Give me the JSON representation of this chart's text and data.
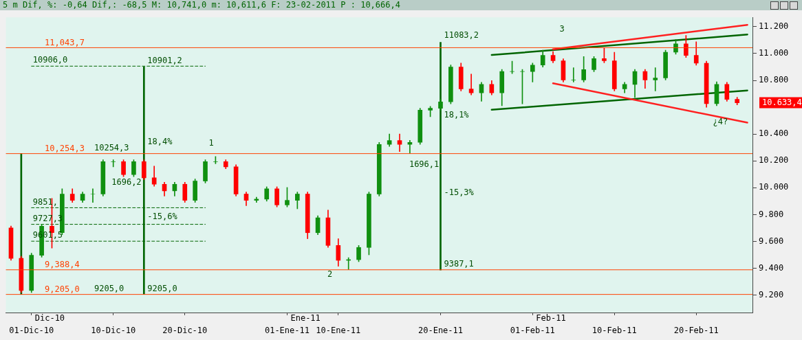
{
  "chart_data": {
    "type": "candlestick",
    "title": "5 m Dif, %: -0,64 Dif,: -68,5 M: 10,741,0 m: 10,611,6 F: 23-02-2011 P : 10,666,4",
    "categories": [
      null,
      null,
      "01-Dic-10",
      null,
      null,
      null,
      null,
      null,
      null,
      null,
      "10-Dic-10",
      null,
      null,
      null,
      null,
      null,
      null,
      "20-Dic-10",
      null,
      null,
      null,
      null,
      null,
      null,
      null,
      null,
      null,
      "01-Ene-11",
      null,
      null,
      null,
      null,
      "10-Ene-11",
      null,
      null,
      null,
      null,
      null,
      null,
      null,
      null,
      null,
      "20-Ene-11",
      null,
      null,
      null,
      null,
      null,
      null,
      null,
      null,
      "01-Feb-11",
      null,
      null,
      null,
      null,
      null,
      null,
      null,
      "10-Feb-11",
      null,
      null,
      null,
      null,
      null,
      null,
      null,
      "20-Feb-11",
      null,
      null,
      null,
      null,
      null
    ],
    "ohlc": [
      [
        9700,
        9715,
        9459,
        9474
      ],
      [
        9474,
        9489,
        9219,
        9234
      ],
      [
        9234,
        9512,
        9219,
        9497
      ],
      [
        9497,
        9728,
        9482,
        9713
      ],
      [
        9713,
        9921,
        9550,
        9665
      ],
      [
        9665,
        9992,
        9650,
        9953
      ],
      [
        9953,
        9992,
        9891,
        9906
      ],
      [
        9906,
        9968,
        9891,
        9953
      ],
      [
        9953,
        9992,
        9891,
        9953
      ],
      [
        9953,
        10209,
        9938,
        10194
      ],
      [
        10194,
        10209,
        10155,
        10194
      ],
      [
        10194,
        10209,
        10083,
        10098
      ],
      [
        10098,
        10209,
        10083,
        10194
      ],
      [
        10194,
        10209,
        10059,
        10074
      ],
      [
        10074,
        10161,
        10011,
        10026
      ],
      [
        10026,
        10041,
        9938,
        9977
      ],
      [
        9977,
        10041,
        9938,
        10026
      ],
      [
        10026,
        10041,
        9891,
        9906
      ],
      [
        9906,
        10065,
        9891,
        10050
      ],
      [
        10050,
        10209,
        10035,
        10194
      ],
      [
        10194,
        10233,
        10179,
        10194
      ],
      [
        10194,
        10209,
        10141,
        10156
      ],
      [
        10156,
        10171,
        9938,
        9953
      ],
      [
        9953,
        9968,
        9867,
        9906
      ],
      [
        9906,
        9930,
        9891,
        9915
      ],
      [
        9915,
        10007,
        9900,
        9992
      ],
      [
        9992,
        10007,
        9857,
        9872
      ],
      [
        9872,
        10002,
        9857,
        9906
      ],
      [
        9906,
        9968,
        9843,
        9953
      ],
      [
        9953,
        9968,
        9620,
        9665
      ],
      [
        9665,
        9791,
        9650,
        9776
      ],
      [
        9776,
        9834,
        9555,
        9570
      ],
      [
        9570,
        9620,
        9415,
        9459
      ],
      [
        9459,
        9479,
        9390,
        9464
      ],
      [
        9464,
        9570,
        9449,
        9555
      ],
      [
        9555,
        9968,
        9500,
        9953
      ],
      [
        9953,
        10338,
        9938,
        10323
      ],
      [
        10323,
        10401,
        10308,
        10352
      ],
      [
        10352,
        10401,
        10270,
        10323
      ],
      [
        10323,
        10353,
        10255,
        10338
      ],
      [
        10338,
        10593,
        10323,
        10578
      ],
      [
        10578,
        10607,
        10529,
        10592
      ],
      [
        10592,
        10660,
        10577,
        10640
      ],
      [
        10640,
        10915,
        10625,
        10900
      ],
      [
        10900,
        10929,
        10721,
        10736
      ],
      [
        10736,
        10847,
        10692,
        10707
      ],
      [
        10707,
        10785,
        10644,
        10770
      ],
      [
        10770,
        10799,
        10692,
        10707
      ],
      [
        10707,
        10881,
        10611,
        10866
      ],
      [
        10866,
        10943,
        10851,
        10866
      ],
      [
        10866,
        10881,
        10625,
        10866
      ],
      [
        10866,
        10929,
        10788,
        10914
      ],
      [
        10914,
        11025,
        10899,
        10986
      ],
      [
        10986,
        11015,
        10931,
        10946
      ],
      [
        10946,
        10961,
        10788,
        10803
      ],
      [
        10803,
        10895,
        10788,
        10803
      ],
      [
        10803,
        10977,
        10788,
        10880
      ],
      [
        10880,
        10977,
        10865,
        10962
      ],
      [
        10962,
        11039,
        10931,
        10946
      ],
      [
        10946,
        11010,
        10721,
        10736
      ],
      [
        10736,
        10785,
        10707,
        10770
      ],
      [
        10770,
        10881,
        10673,
        10866
      ],
      [
        10866,
        10881,
        10740,
        10803
      ],
      [
        10803,
        10895,
        10721,
        10818
      ],
      [
        10818,
        11025,
        10803,
        11010
      ],
      [
        11010,
        11106,
        10995,
        11072
      ],
      [
        11072,
        11135,
        10971,
        10986
      ],
      [
        10986,
        11087,
        10913,
        10928
      ],
      [
        10928,
        10943,
        10600,
        10626
      ],
      [
        10626,
        10790,
        10611,
        10770
      ],
      [
        10770,
        10785,
        10644,
        10659
      ],
      [
        10659,
        10674,
        10618,
        10633.4
      ],
      null
    ],
    "series": [
      {
        "type": "line",
        "color": "#ff2020",
        "values": [
          null,
          null,
          null,
          null,
          null,
          null,
          null,
          null,
          null,
          null,
          null,
          null,
          null,
          null,
          null,
          null,
          null,
          null,
          null,
          null,
          null,
          null,
          null,
          null,
          null,
          null,
          null,
          null,
          null,
          null,
          null,
          null,
          null,
          null,
          null,
          null,
          null,
          null,
          null,
          null,
          null,
          null,
          null,
          null,
          null,
          null,
          null,
          null,
          null,
          null,
          null,
          null,
          null,
          11032,
          null,
          null,
          null,
          null,
          null,
          null,
          null,
          null,
          null,
          null,
          null,
          null,
          null,
          null,
          null,
          null,
          null,
          null,
          11214
        ]
      },
      {
        "type": "line",
        "color": "#ff2020",
        "values": [
          null,
          null,
          null,
          null,
          null,
          null,
          null,
          null,
          null,
          null,
          null,
          null,
          null,
          null,
          null,
          null,
          null,
          null,
          null,
          null,
          null,
          null,
          null,
          null,
          null,
          null,
          null,
          null,
          null,
          null,
          null,
          null,
          null,
          null,
          null,
          null,
          null,
          null,
          null,
          null,
          null,
          null,
          null,
          null,
          null,
          null,
          null,
          null,
          null,
          null,
          null,
          null,
          null,
          10778,
          null,
          null,
          null,
          null,
          null,
          null,
          null,
          null,
          null,
          null,
          null,
          null,
          null,
          null,
          null,
          null,
          null,
          null,
          10485
        ]
      },
      {
        "type": "line",
        "color": "#006400",
        "values": [
          null,
          null,
          null,
          null,
          null,
          null,
          null,
          null,
          null,
          null,
          null,
          null,
          null,
          null,
          null,
          null,
          null,
          null,
          null,
          null,
          null,
          null,
          null,
          null,
          null,
          null,
          null,
          null,
          null,
          null,
          null,
          null,
          null,
          null,
          null,
          null,
          null,
          null,
          null,
          null,
          null,
          null,
          null,
          null,
          null,
          null,
          null,
          10989,
          null,
          null,
          null,
          null,
          null,
          null,
          null,
          null,
          null,
          null,
          null,
          null,
          null,
          null,
          null,
          null,
          null,
          null,
          null,
          null,
          null,
          null,
          null,
          null,
          11142
        ]
      },
      {
        "type": "line",
        "color": "#006400",
        "values": [
          null,
          null,
          null,
          null,
          null,
          null,
          null,
          null,
          null,
          null,
          null,
          null,
          null,
          null,
          null,
          null,
          null,
          null,
          null,
          null,
          null,
          null,
          null,
          null,
          null,
          null,
          null,
          null,
          null,
          null,
          null,
          null,
          null,
          null,
          null,
          null,
          null,
          null,
          null,
          null,
          null,
          null,
          null,
          null,
          null,
          null,
          null,
          10581,
          null,
          null,
          null,
          null,
          null,
          null,
          null,
          null,
          null,
          null,
          null,
          null,
          null,
          null,
          null,
          null,
          null,
          null,
          null,
          null,
          null,
          null,
          null,
          null,
          10725
        ]
      },
      {
        "type": "line",
        "color": "#006400",
        "line_style": "dashed",
        "values": [
          null,
          null,
          10906,
          null,
          null,
          null,
          null,
          null,
          null,
          null,
          null,
          null,
          null,
          null,
          null,
          null,
          null,
          null,
          null,
          10906,
          null,
          null,
          null,
          null,
          null,
          null,
          null,
          null,
          null,
          null,
          null,
          null,
          null,
          null,
          null,
          null,
          null,
          null,
          null,
          null,
          null,
          null,
          null,
          null,
          null,
          null,
          null,
          null,
          null,
          null,
          null,
          null,
          null,
          null,
          null,
          null,
          null,
          null,
          null,
          null,
          null,
          null,
          null,
          null,
          null,
          null,
          null,
          null,
          null,
          null,
          null,
          null,
          null
        ]
      },
      {
        "type": "line",
        "color": "#006400",
        "line_style": "dashed",
        "values": [
          null,
          null,
          9851,
          null,
          null,
          null,
          null,
          null,
          null,
          null,
          null,
          null,
          null,
          null,
          null,
          null,
          null,
          null,
          null,
          9851,
          null,
          null,
          null,
          null,
          null,
          null,
          null,
          null,
          null,
          null,
          null,
          null,
          null,
          null,
          null,
          null,
          null,
          null,
          null,
          null,
          null,
          null,
          null,
          null,
          null,
          null,
          null,
          null,
          null,
          null,
          null,
          null,
          null,
          null,
          null,
          null,
          null,
          null,
          null,
          null,
          null,
          null,
          null,
          null,
          null,
          null,
          null,
          null,
          null,
          null,
          null,
          null,
          null
        ]
      },
      {
        "type": "line",
        "color": "#006400",
        "line_style": "dashed",
        "values": [
          null,
          null,
          9727.3,
          null,
          null,
          null,
          null,
          null,
          null,
          null,
          null,
          null,
          null,
          null,
          null,
          null,
          null,
          null,
          null,
          9727.3,
          null,
          null,
          null,
          null,
          null,
          null,
          null,
          null,
          null,
          null,
          null,
          null,
          null,
          null,
          null,
          null,
          null,
          null,
          null,
          null,
          null,
          null,
          null,
          null,
          null,
          null,
          null,
          null,
          null,
          null,
          null,
          null,
          null,
          null,
          null,
          null,
          null,
          null,
          null,
          null,
          null,
          null,
          null,
          null,
          null,
          null,
          null,
          null,
          null,
          null,
          null,
          null,
          null
        ]
      },
      {
        "type": "line",
        "color": "#006400",
        "line_style": "dashed",
        "values": [
          null,
          null,
          9601.5,
          null,
          null,
          null,
          null,
          null,
          null,
          null,
          null,
          null,
          null,
          null,
          null,
          null,
          null,
          null,
          null,
          9601.5,
          null,
          null,
          null,
          null,
          null,
          null,
          null,
          null,
          null,
          null,
          null,
          null,
          null,
          null,
          null,
          null,
          null,
          null,
          null,
          null,
          null,
          null,
          null,
          null,
          null,
          null,
          null,
          null,
          null,
          null,
          null,
          null,
          null,
          null,
          null,
          null,
          null,
          null,
          null,
          null,
          null,
          null,
          null,
          null,
          null,
          null,
          null,
          null,
          null,
          null,
          null,
          null,
          null
        ]
      },
      {
        "type": "bar",
        "color": "#006400",
        "values": [
          null,
          1049.3,
          null,
          null,
          null,
          null,
          null,
          null,
          null,
          null,
          null,
          null,
          null,
          1696.2,
          null,
          null,
          null,
          null,
          null,
          null,
          null,
          null,
          null,
          null,
          null,
          null,
          null,
          null,
          null,
          null,
          null,
          null,
          null,
          null,
          null,
          null,
          null,
          null,
          null,
          null,
          null,
          null,
          1696.1,
          null,
          null,
          null,
          null,
          null,
          null,
          null,
          null,
          null,
          null,
          null,
          null,
          null,
          null,
          null,
          null,
          null,
          null,
          null,
          null,
          null,
          null,
          null,
          null,
          null,
          null,
          null,
          null,
          null,
          null
        ],
        "base": [
          null,
          9205,
          null,
          null,
          null,
          null,
          null,
          null,
          null,
          null,
          null,
          null,
          null,
          9205,
          null,
          null,
          null,
          null,
          null,
          null,
          null,
          null,
          null,
          null,
          null,
          null,
          null,
          null,
          null,
          null,
          null,
          null,
          null,
          null,
          null,
          null,
          null,
          null,
          null,
          null,
          null,
          null,
          9387.1,
          null,
          null,
          null,
          null,
          null,
          null,
          null,
          null,
          null,
          null,
          null,
          null,
          null,
          null,
          null,
          null,
          null,
          null,
          null,
          null,
          null,
          null,
          null,
          null,
          null,
          null,
          null,
          null,
          null,
          null
        ]
      }
    ],
    "ref_lines": [
      {
        "axis": "y",
        "value": 11043.7,
        "label": "11,043,7",
        "color": "#ff4000"
      },
      {
        "axis": "y",
        "value": 10254.3,
        "label": "10,254,3",
        "color": "#ff4000"
      },
      {
        "axis": "y",
        "value": 9388.4,
        "label": "9,388,4",
        "color": "#ff4000"
      },
      {
        "axis": "y",
        "value": 9205.0,
        "label": "9,205,0",
        "color": "#ff4000"
      }
    ],
    "annotations": [
      {
        "text": "10906,0",
        "y": 10906
      },
      {
        "text": "10901,2",
        "y": 10901.2
      },
      "18,4%",
      {
        "text": "10254,3",
        "y": 10254.3
      },
      "1696,2",
      {
        "text": "9851,",
        "y": 9851
      },
      {
        "text": "9727,3",
        "y": 9727.3
      },
      "-15,6%",
      {
        "text": "9601,5",
        "y": 9601.5
      },
      {
        "text": "9205,0",
        "y": 9205
      },
      {
        "text": "9205,0",
        "y": 9205
      },
      "1",
      "2",
      "3",
      "¿4?",
      "11083,2",
      "18,1%",
      "1696,1",
      "-15,3%",
      {
        "text": "9387,1",
        "y": 9387.1
      },
      "10.633,4",
      "Dic-10",
      "Ene-11",
      "Feb-11"
    ],
    "ylim": [
      9070,
      11270
    ],
    "yticks": [
      {
        "value": 9200,
        "label": "9.200"
      },
      {
        "value": 9400,
        "label": "9.400"
      },
      {
        "value": 9600,
        "label": "9.600"
      },
      {
        "value": 9800,
        "label": "9.800"
      },
      {
        "value": 10000,
        "label": "10.000"
      },
      {
        "value": 10200,
        "label": "10.200"
      },
      {
        "value": 10400,
        "label": "10.400"
      },
      {
        "value": 10800,
        "label": "10.800"
      },
      {
        "value": 11000,
        "label": "11.000"
      },
      {
        "value": 11200,
        "label": "11.200"
      }
    ],
    "grid": false,
    "legend": false,
    "marker": "none"
  }
}
